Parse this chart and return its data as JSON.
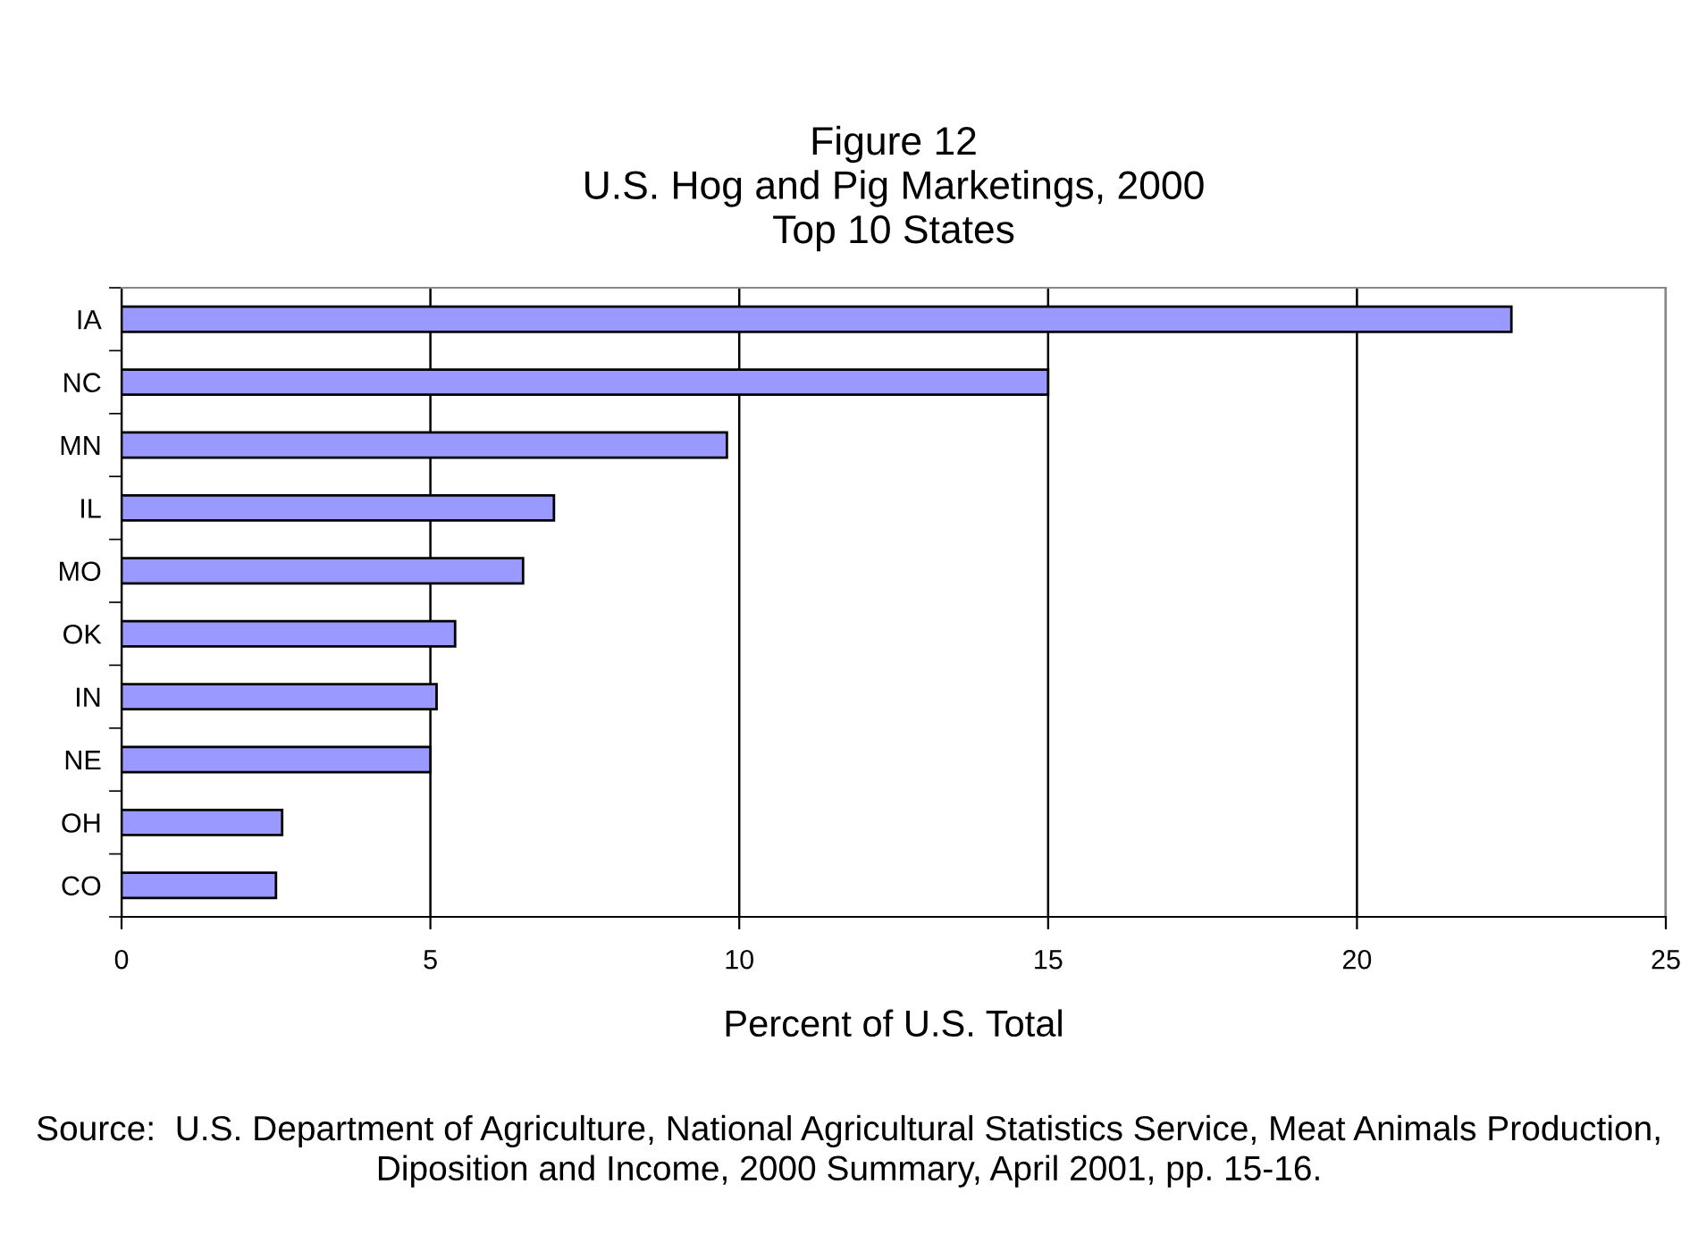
{
  "chart_data": {
    "type": "bar",
    "orientation": "horizontal",
    "title": "Figure 12\nU.S. Hog and Pig Marketings, 2000\nTop 10 States",
    "xlabel": "Percent of U.S. Total",
    "categories": [
      "IA",
      "NC",
      "MN",
      "IL",
      "MO",
      "OK",
      "IN",
      "NE",
      "OH",
      "CO"
    ],
    "values": [
      22.5,
      15.0,
      9.8,
      7.0,
      6.5,
      5.4,
      5.1,
      5.0,
      2.6,
      2.5
    ],
    "color": "#9999ff",
    "xlim": [
      0,
      25
    ],
    "xticks": [
      0,
      5,
      10,
      15,
      20,
      25
    ],
    "grid": "x",
    "annotations": [
      "Source:  U.S. Department of Agriculture, National Agricultural Statistics Service, Meat Animals Production, Diposition and Income, 2000 Summary, April 2001, pp. 15-16."
    ]
  }
}
